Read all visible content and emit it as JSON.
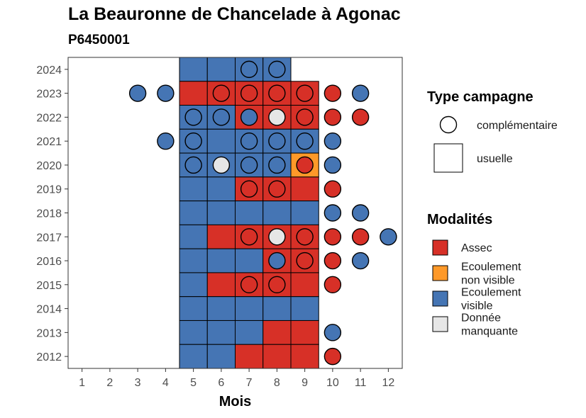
{
  "chart_data": {
    "type": "heatmap",
    "title": "La Beauronne de Chancelade à Agonac",
    "subtitle": "P6450001",
    "xlabel": "Mois",
    "ylabel": "",
    "x_ticks": [
      "1",
      "2",
      "3",
      "4",
      "5",
      "6",
      "7",
      "8",
      "9",
      "10",
      "11",
      "12"
    ],
    "y_ticks": [
      "2012",
      "2013",
      "2014",
      "2015",
      "2016",
      "2017",
      "2018",
      "2019",
      "2020",
      "2021",
      "2022",
      "2023",
      "2024"
    ],
    "xlim": [
      0.5,
      12.5
    ],
    "ylim": [
      2011.5,
      2024.5
    ],
    "colors": {
      "Assec": "#d73027",
      "Ecoulement non visible": "#fe9929",
      "Ecoulement visible": "#4575b4",
      "Donnée manquante": "#e6e6e6"
    },
    "legend_shape": {
      "title": "Type campagne",
      "items": [
        {
          "key": "complementaire",
          "label": "complémentaire"
        },
        {
          "key": "usuelle",
          "label": "usuelle"
        }
      ]
    },
    "legend_fill": {
      "title": "Modalités",
      "items": [
        {
          "key": "Assec",
          "lines": [
            "Assec"
          ]
        },
        {
          "key": "Ecoulement non visible",
          "lines": [
            "Ecoulement",
            "non visible"
          ]
        },
        {
          "key": "Ecoulement visible",
          "lines": [
            "Ecoulement",
            "visible"
          ]
        },
        {
          "key": "Donnée manquante",
          "lines": [
            "Donnée",
            "manquante"
          ]
        }
      ]
    },
    "usuelle": [
      {
        "year": 2024,
        "values": {
          "5": "Ecoulement visible",
          "6": "Ecoulement visible",
          "7": "Ecoulement visible",
          "8": "Ecoulement visible"
        }
      },
      {
        "year": 2023,
        "values": {
          "5": "Assec",
          "6": "Assec",
          "7": "Assec",
          "8": "Assec",
          "9": "Assec"
        }
      },
      {
        "year": 2022,
        "values": {
          "5": "Ecoulement visible",
          "6": "Ecoulement visible",
          "7": "Assec",
          "8": "Assec",
          "9": "Assec"
        }
      },
      {
        "year": 2021,
        "values": {
          "5": "Ecoulement visible",
          "6": "Ecoulement visible",
          "7": "Ecoulement visible",
          "8": "Ecoulement visible",
          "9": "Ecoulement visible"
        }
      },
      {
        "year": 2020,
        "values": {
          "5": "Ecoulement visible",
          "6": "Ecoulement visible",
          "7": "Ecoulement visible",
          "8": "Ecoulement visible",
          "9": "Ecoulement non visible"
        }
      },
      {
        "year": 2019,
        "values": {
          "5": "Ecoulement visible",
          "6": "Ecoulement visible",
          "7": "Assec",
          "8": "Assec",
          "9": "Assec"
        }
      },
      {
        "year": 2018,
        "values": {
          "5": "Ecoulement visible",
          "6": "Ecoulement visible",
          "7": "Ecoulement visible",
          "8": "Ecoulement visible",
          "9": "Ecoulement visible"
        }
      },
      {
        "year": 2017,
        "values": {
          "5": "Ecoulement visible",
          "6": "Assec",
          "7": "Assec",
          "8": "Assec",
          "9": "Assec"
        }
      },
      {
        "year": 2016,
        "values": {
          "5": "Ecoulement visible",
          "6": "Ecoulement visible",
          "7": "Ecoulement visible",
          "8": "Assec",
          "9": "Assec"
        }
      },
      {
        "year": 2015,
        "values": {
          "5": "Ecoulement visible",
          "6": "Assec",
          "7": "Assec",
          "8": "Assec",
          "9": "Assec"
        }
      },
      {
        "year": 2014,
        "values": {
          "5": "Ecoulement visible",
          "6": "Ecoulement visible",
          "7": "Ecoulement visible",
          "8": "Ecoulement visible",
          "9": "Ecoulement visible"
        }
      },
      {
        "year": 2013,
        "values": {
          "5": "Ecoulement visible",
          "6": "Ecoulement visible",
          "7": "Ecoulement visible",
          "8": "Assec",
          "9": "Assec"
        }
      },
      {
        "year": 2012,
        "values": {
          "5": "Ecoulement visible",
          "6": "Ecoulement visible",
          "7": "Assec",
          "8": "Assec",
          "9": "Assec"
        }
      }
    ],
    "complementaire": [
      {
        "year": 2024,
        "values": {
          "7": "Ecoulement visible",
          "8": "Ecoulement visible"
        }
      },
      {
        "year": 2023,
        "values": {
          "3": "Ecoulement visible",
          "4": "Ecoulement visible",
          "6": "Assec",
          "7": "Assec",
          "8": "Assec",
          "9": "Assec",
          "10": "Assec",
          "11": "Ecoulement visible"
        }
      },
      {
        "year": 2022,
        "values": {
          "5": "Ecoulement visible",
          "6": "Ecoulement visible",
          "7": "Ecoulement visible",
          "8": "Donnée manquante",
          "9": "Assec",
          "10": "Assec",
          "11": "Assec"
        }
      },
      {
        "year": 2021,
        "values": {
          "4": "Ecoulement visible",
          "5": "Ecoulement visible",
          "7": "Ecoulement visible",
          "8": "Ecoulement visible",
          "9": "Ecoulement visible",
          "10": "Ecoulement visible"
        }
      },
      {
        "year": 2020,
        "values": {
          "5": "Ecoulement visible",
          "6": "Donnée manquante",
          "7": "Ecoulement visible",
          "8": "Ecoulement visible",
          "9": "Assec",
          "10": "Ecoulement visible"
        }
      },
      {
        "year": 2019,
        "values": {
          "7": "Assec",
          "8": "Assec",
          "10": "Assec"
        }
      },
      {
        "year": 2018,
        "values": {
          "10": "Ecoulement visible",
          "11": "Ecoulement visible"
        }
      },
      {
        "year": 2017,
        "values": {
          "7": "Assec",
          "8": "Donnée manquante",
          "9": "Assec",
          "10": "Assec",
          "11": "Assec",
          "12": "Ecoulement visible"
        }
      },
      {
        "year": 2016,
        "values": {
          "8": "Ecoulement visible",
          "9": "Assec",
          "10": "Assec",
          "11": "Ecoulement visible"
        }
      },
      {
        "year": 2015,
        "values": {
          "7": "Assec",
          "8": "Assec",
          "10": "Assec"
        }
      },
      {
        "year": 2013,
        "values": {
          "10": "Ecoulement visible"
        }
      },
      {
        "year": 2012,
        "values": {
          "10": "Assec"
        }
      }
    ]
  }
}
